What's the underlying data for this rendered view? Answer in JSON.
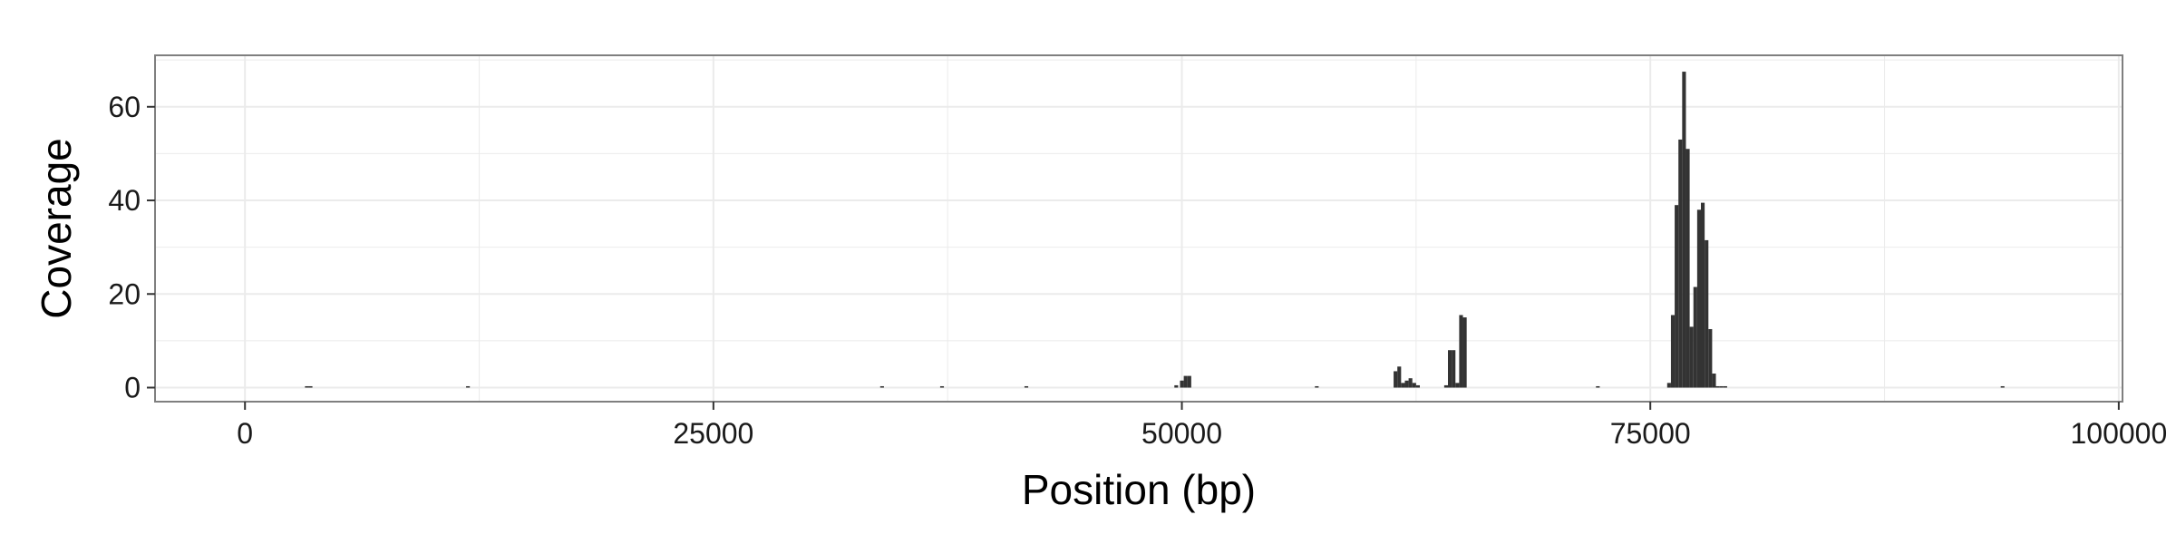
{
  "chart_data": {
    "type": "bar",
    "title": "",
    "xlabel": "Position (bp)",
    "ylabel": "Coverage",
    "xlim": [
      -4800,
      100200
    ],
    "ylim": [
      -3,
      71
    ],
    "x_ticks": [
      0,
      25000,
      50000,
      75000,
      100000
    ],
    "x_tick_labels": [
      "0",
      "25000",
      "50000",
      "75000",
      "100000"
    ],
    "y_ticks": [
      0,
      20,
      40,
      60
    ],
    "y_tick_labels": [
      "0",
      "20",
      "40",
      "60"
    ],
    "grid": true,
    "bin_width": 200,
    "bar_color": "#333333",
    "panel_background": "#ffffff",
    "grid_color": "#ebebeb",
    "x": [
      3300,
      3500,
      11900,
      34000,
      37200,
      41700,
      49700,
      50000,
      50200,
      50400,
      57200,
      61400,
      61600,
      61800,
      62000,
      62200,
      62400,
      62600,
      64100,
      64300,
      64500,
      64700,
      64900,
      65100,
      72200,
      76000,
      76200,
      76400,
      76600,
      76800,
      77000,
      77200,
      77400,
      77600,
      77800,
      78000,
      78200,
      78400,
      78600,
      78800,
      79000,
      93800
    ],
    "values": [
      0.3,
      0.3,
      0.3,
      0.3,
      0.3,
      0.3,
      0.5,
      1.5,
      2.5,
      2.5,
      0.3,
      3.5,
      4.5,
      1,
      1.5,
      2,
      1,
      0.5,
      0.5,
      8,
      8,
      1,
      15.5,
      15,
      0.3,
      1,
      15.5,
      39,
      53,
      67.5,
      51,
      13,
      21.5,
      38,
      39.5,
      31.5,
      12.5,
      3,
      0.3,
      0.3,
      0.3,
      0.3
    ]
  }
}
